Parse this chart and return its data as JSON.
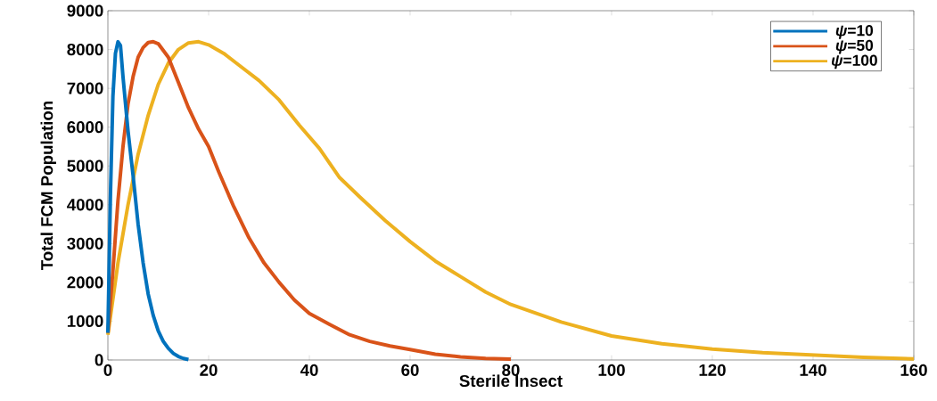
{
  "chart_data": {
    "type": "line",
    "xlabel": "Sterile Insect",
    "ylabel": "Total FCM Population",
    "xlim": [
      0,
      160
    ],
    "ylim": [
      0,
      9000
    ],
    "xticks": [
      0,
      20,
      40,
      60,
      80,
      100,
      120,
      140,
      160
    ],
    "yticks": [
      0,
      1000,
      2000,
      3000,
      4000,
      5000,
      6000,
      7000,
      8000,
      9000
    ],
    "grid": false,
    "legend": "top right",
    "marker": "none",
    "line_style": "solid",
    "series": [
      {
        "name": "*ψ*=10",
        "color": "#0072bd",
        "x": [
          0,
          0.5,
          1,
          1.5,
          2,
          2.5,
          3,
          4,
          5,
          6,
          7,
          8,
          9,
          10,
          11,
          12,
          13,
          14,
          15,
          16
        ],
        "values": [
          700,
          4200,
          6800,
          7900,
          8200,
          8100,
          7300,
          5900,
          4750,
          3500,
          2500,
          1700,
          1150,
          750,
          480,
          300,
          170,
          90,
          40,
          10
        ]
      },
      {
        "name": "*ψ*=50",
        "color": "#d95319",
        "x": [
          0,
          1,
          2,
          3,
          4,
          5,
          6,
          7,
          8,
          9,
          10,
          12,
          14,
          16,
          18,
          20,
          22,
          25,
          28,
          31,
          34,
          37,
          40,
          44,
          48,
          52,
          56,
          60,
          65,
          70,
          75,
          80
        ],
        "values": [
          700,
          2300,
          4100,
          5500,
          6600,
          7300,
          7800,
          8050,
          8180,
          8200,
          8150,
          7800,
          7150,
          6500,
          5950,
          5500,
          4850,
          3950,
          3150,
          2500,
          2000,
          1550,
          1200,
          920,
          650,
          480,
          360,
          270,
          150,
          80,
          40,
          20
        ]
      },
      {
        "name": "*ψ*=100",
        "color": "#edb120",
        "x": [
          0,
          2,
          4,
          6,
          8,
          10,
          12,
          14,
          16,
          18,
          20,
          23,
          26,
          30,
          34,
          38,
          42,
          46,
          50,
          55,
          60,
          65,
          70,
          75,
          80,
          90,
          100,
          110,
          120,
          130,
          140,
          150,
          160
        ],
        "values": [
          650,
          2500,
          4000,
          5300,
          6300,
          7100,
          7650,
          8000,
          8170,
          8200,
          8120,
          7900,
          7600,
          7200,
          6700,
          6050,
          5450,
          4700,
          4200,
          3600,
          3050,
          2550,
          2150,
          1750,
          1430,
          980,
          620,
          420,
          280,
          190,
          130,
          70,
          30
        ]
      }
    ]
  }
}
